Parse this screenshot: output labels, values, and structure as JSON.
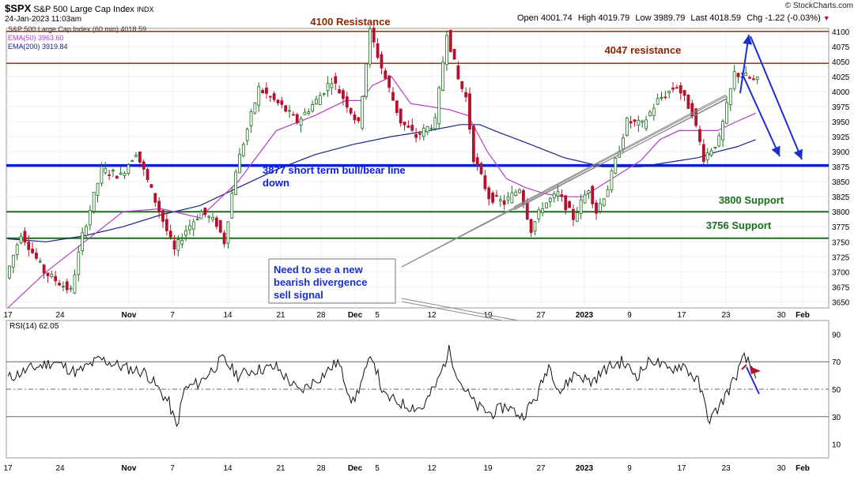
{
  "header": {
    "symbol": "$SPX",
    "name": "S&P 500 Large Cap Index",
    "exchange": "INDX",
    "timestamp": "24-Jan-2023 11:03am",
    "brand": "© StockCharts.com",
    "quote": {
      "open_label": "Open",
      "open": "4001.74",
      "high_label": "High",
      "high": "4019.79",
      "low_label": "Low",
      "low": "3989.79",
      "last_label": "Last",
      "last": "4018.59",
      "chg_label": "Chg",
      "chg": "-1.22 (-0.03%)"
    },
    "legend": [
      {
        "text": "S&P 500 Large Cap Index (60 min) 4018.59",
        "color": "#333333"
      },
      {
        "text": "EMA(50) 3963.60",
        "color": "#b03fc4"
      },
      {
        "text": "EMA(200) 3919.84",
        "color": "#1a237e"
      }
    ]
  },
  "annotations": {
    "res4100": "4100 Resistance",
    "res4047": "4047 resistance",
    "bull_bear_line1": "3877 short term bull/bear line",
    "bull_bear_line2": "down",
    "sup3800": "3800 Support",
    "sup3756": "3756 Support",
    "note_line1": "Need to see a new",
    "note_line2": "bearish divergence",
    "note_line3": "sell signal"
  },
  "rsi_label": "RSI(14) 62.05",
  "colors": {
    "resistance": "#8b2500",
    "support": "#1b6e1b",
    "bull_bear": "#0a1ee6",
    "ema50": "#b03fc4",
    "ema200": "#1a237e",
    "candle_up": "#1b6e1b",
    "candle_down": "#b3122e",
    "rsi_line": "#111111",
    "arrow": "#1a2fd0"
  },
  "chart_data": [
    {
      "type": "candlestick",
      "title": "S&P 500 Large Cap Index (60 min)",
      "y_ticks": [
        3650,
        3675,
        3700,
        3725,
        3750,
        3775,
        3800,
        3825,
        3850,
        3875,
        3900,
        3925,
        3950,
        3975,
        4000,
        4025,
        4050,
        4075,
        4100
      ],
      "ylim": [
        3640,
        4105
      ],
      "x_tick_labels": [
        "17",
        "24",
        "Nov",
        "7",
        "14",
        "21",
        "28",
        "Dec",
        "5",
        "12",
        "19",
        "27",
        "2023",
        "9",
        "17",
        "23",
        "30",
        "Feb"
      ],
      "horizontal_lines": [
        {
          "value": 4100,
          "label": "4100 Resistance",
          "color": "#8b2500"
        },
        {
          "value": 4047,
          "label": "4047 resistance",
          "color": "#8b2500"
        },
        {
          "value": 3877,
          "label": "3877 short term bull/bear line down",
          "color": "#0a1ee6"
        },
        {
          "value": 3800,
          "label": "3800 Support",
          "color": "#1b6e1b"
        },
        {
          "value": 3756,
          "label": "3756 Support",
          "color": "#1b6e1b"
        }
      ],
      "price_path": [
        [
          0,
          3690
        ],
        [
          4,
          3765
        ],
        [
          10,
          3700
        ],
        [
          17,
          3668
        ],
        [
          20,
          3760
        ],
        [
          25,
          3870
        ],
        [
          30,
          3860
        ],
        [
          34,
          3900
        ],
        [
          38,
          3835
        ],
        [
          44,
          3735
        ],
        [
          47,
          3770
        ],
        [
          51,
          3800
        ],
        [
          55,
          3780
        ],
        [
          57,
          3750
        ],
        [
          60,
          3870
        ],
        [
          66,
          4005
        ],
        [
          72,
          3975
        ],
        [
          76,
          3950
        ],
        [
          81,
          3985
        ],
        [
          85,
          4020
        ],
        [
          88,
          3990
        ],
        [
          92,
          3945
        ],
        [
          95,
          4100
        ],
        [
          98,
          4040
        ],
        [
          103,
          3950
        ],
        [
          107,
          3925
        ],
        [
          112,
          3950
        ],
        [
          115,
          4100
        ],
        [
          118,
          4020
        ],
        [
          120,
          3990
        ],
        [
          122,
          3890
        ],
        [
          126,
          3825
        ],
        [
          130,
          3815
        ],
        [
          134,
          3840
        ],
        [
          137,
          3770
        ],
        [
          140,
          3810
        ],
        [
          144,
          3830
        ],
        [
          148,
          3790
        ],
        [
          152,
          3840
        ],
        [
          154,
          3800
        ],
        [
          157,
          3840
        ],
        [
          162,
          3950
        ],
        [
          166,
          3945
        ],
        [
          170,
          3985
        ],
        [
          175,
          4010
        ],
        [
          179,
          3965
        ],
        [
          182,
          3890
        ],
        [
          186,
          3920
        ],
        [
          190,
          4030
        ],
        [
          193,
          4025
        ],
        [
          195,
          4018
        ]
      ],
      "ema50_path": [
        [
          0,
          3640
        ],
        [
          10,
          3700
        ],
        [
          20,
          3750
        ],
        [
          30,
          3800
        ],
        [
          40,
          3805
        ],
        [
          50,
          3790
        ],
        [
          60,
          3850
        ],
        [
          70,
          3935
        ],
        [
          80,
          3960
        ],
        [
          88,
          3985
        ],
        [
          92,
          3985
        ],
        [
          95,
          4010
        ],
        [
          100,
          4025
        ],
        [
          105,
          3980
        ],
        [
          110,
          3975
        ],
        [
          115,
          3970
        ],
        [
          120,
          3960
        ],
        [
          125,
          3900
        ],
        [
          130,
          3855
        ],
        [
          135,
          3840
        ],
        [
          140,
          3830
        ],
        [
          145,
          3825
        ],
        [
          150,
          3825
        ],
        [
          155,
          3845
        ],
        [
          160,
          3865
        ],
        [
          165,
          3885
        ],
        [
          170,
          3920
        ],
        [
          175,
          3935
        ],
        [
          180,
          3935
        ],
        [
          185,
          3935
        ],
        [
          190,
          3950
        ],
        [
          195,
          3964
        ]
      ],
      "ema200_path": [
        [
          0,
          3755
        ],
        [
          10,
          3750
        ],
        [
          20,
          3760
        ],
        [
          30,
          3775
        ],
        [
          40,
          3795
        ],
        [
          50,
          3810
        ],
        [
          60,
          3840
        ],
        [
          70,
          3870
        ],
        [
          80,
          3895
        ],
        [
          90,
          3912
        ],
        [
          100,
          3925
        ],
        [
          110,
          3935
        ],
        [
          118,
          3945
        ],
        [
          123,
          3945
        ],
        [
          128,
          3932
        ],
        [
          135,
          3915
        ],
        [
          145,
          3890
        ],
        [
          155,
          3875
        ],
        [
          165,
          3875
        ],
        [
          175,
          3885
        ],
        [
          180,
          3890
        ],
        [
          185,
          3900
        ],
        [
          190,
          3908
        ],
        [
          195,
          3920
        ]
      ],
      "projection_arrows": [
        {
          "from": [
            193,
            4018
          ],
          "to": [
            199,
            4090
          ]
        },
        {
          "from": [
            193,
            4040
          ],
          "to": [
            202,
            3875
          ]
        },
        {
          "from": [
            199,
            4090
          ],
          "to": [
            208,
            3875
          ]
        }
      ]
    },
    {
      "type": "line",
      "title": "RSI(14)",
      "y_ticks": [
        10,
        30,
        50,
        70,
        90
      ],
      "ylim": [
        0,
        100
      ],
      "reference_lines": [
        30,
        50,
        70
      ],
      "rsi_path": [
        [
          0,
          58
        ],
        [
          6,
          65
        ],
        [
          12,
          70
        ],
        [
          18,
          62
        ],
        [
          24,
          72
        ],
        [
          30,
          66
        ],
        [
          36,
          62
        ],
        [
          42,
          40
        ],
        [
          44,
          22
        ],
        [
          46,
          50
        ],
        [
          50,
          55
        ],
        [
          56,
          72
        ],
        [
          60,
          60
        ],
        [
          64,
          64
        ],
        [
          70,
          66
        ],
        [
          76,
          48
        ],
        [
          82,
          60
        ],
        [
          86,
          70
        ],
        [
          90,
          40
        ],
        [
          95,
          75
        ],
        [
          98,
          45
        ],
        [
          104,
          38
        ],
        [
          108,
          36
        ],
        [
          112,
          55
        ],
        [
          115,
          78
        ],
        [
          118,
          55
        ],
        [
          122,
          38
        ],
        [
          126,
          32
        ],
        [
          130,
          38
        ],
        [
          134,
          30
        ],
        [
          138,
          45
        ],
        [
          141,
          68
        ],
        [
          144,
          48
        ],
        [
          148,
          62
        ],
        [
          152,
          55
        ],
        [
          156,
          65
        ],
        [
          160,
          70
        ],
        [
          164,
          60
        ],
        [
          168,
          72
        ],
        [
          172,
          64
        ],
        [
          176,
          68
        ],
        [
          180,
          55
        ],
        [
          183,
          27
        ],
        [
          186,
          40
        ],
        [
          189,
          55
        ],
        [
          192,
          73
        ],
        [
          195,
          62
        ]
      ]
    }
  ]
}
